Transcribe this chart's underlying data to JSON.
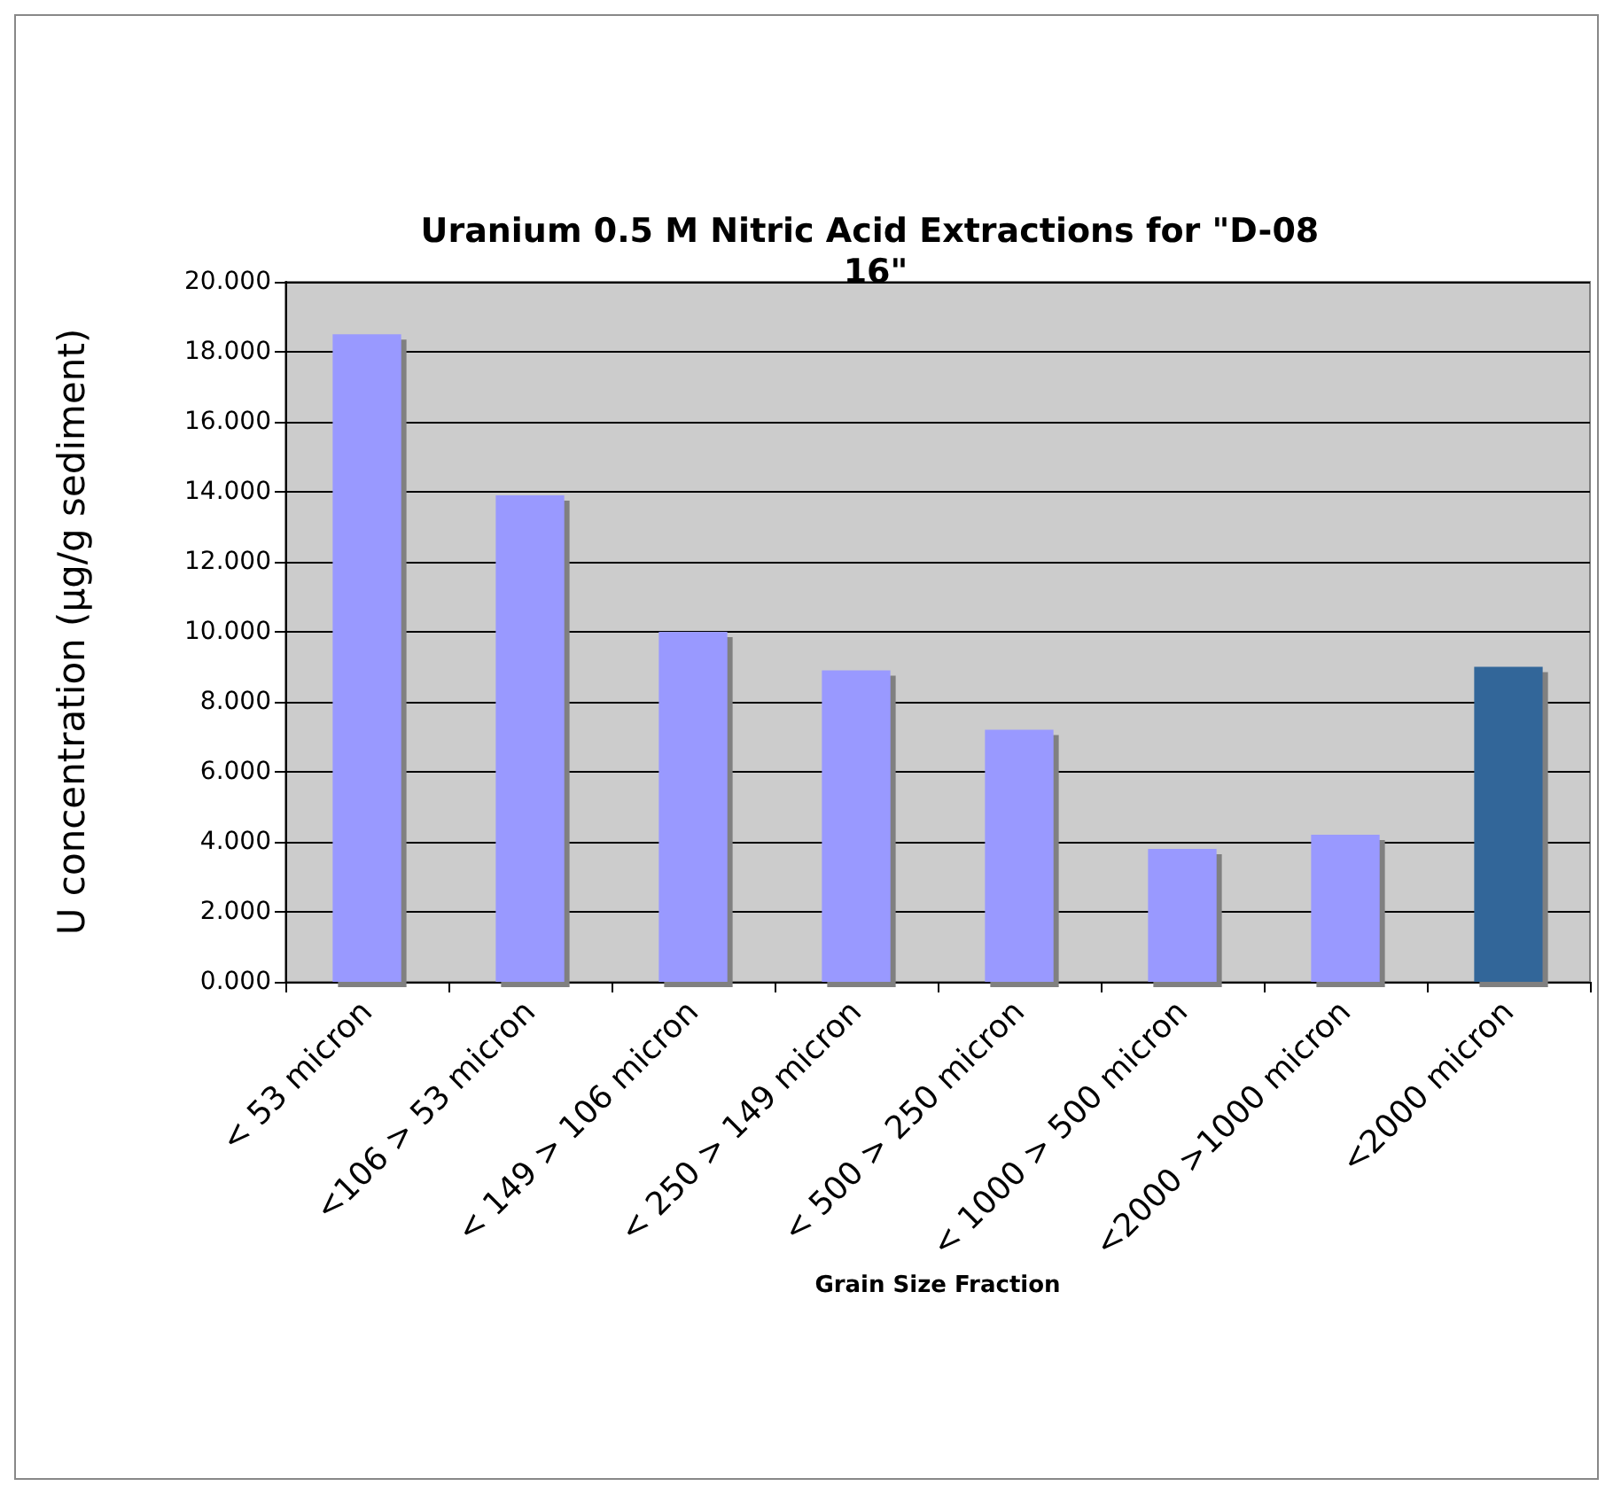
{
  "chart_data": {
    "type": "bar",
    "title": "Uranium 0.5 M Nitric Acid Extractions for \"D-08 16\"",
    "xlabel": "Grain Size Fraction",
    "ylabel": "U concentration (µg/g sediment)",
    "categories": [
      "< 53 micron",
      "<106 > 53 micron",
      "< 149 > 106 micron",
      "< 250 > 149 micron",
      "< 500 > 250 micron",
      "< 1000 > 500 micron",
      "<2000 >1000 micron",
      "<2000 micron"
    ],
    "values": [
      18.5,
      13.9,
      10.0,
      8.9,
      7.2,
      3.8,
      4.2,
      9.0
    ],
    "colors": [
      "#9999ff",
      "#9999ff",
      "#9999ff",
      "#9999ff",
      "#9999ff",
      "#9999ff",
      "#9999ff",
      "#336699"
    ],
    "ylim": [
      0,
      20
    ],
    "yticks": [
      {
        "value": 0,
        "label": "0.000"
      },
      {
        "value": 2,
        "label": "2.000"
      },
      {
        "value": 4,
        "label": "4.000"
      },
      {
        "value": 6,
        "label": "6.000"
      },
      {
        "value": 8,
        "label": "8.000"
      },
      {
        "value": 10,
        "label": "10.000"
      },
      {
        "value": 12,
        "label": "12.000"
      },
      {
        "value": 14,
        "label": "14.000"
      },
      {
        "value": 16,
        "label": "16.000"
      },
      {
        "value": 18,
        "label": "18.000"
      },
      {
        "value": 20,
        "label": "20.000"
      }
    ],
    "grid": true
  }
}
